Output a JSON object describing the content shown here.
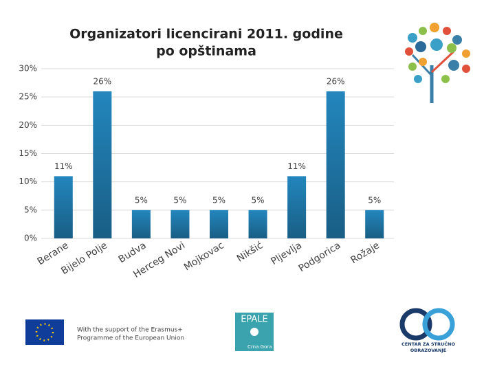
{
  "chart_data": {
    "type": "bar",
    "title": [
      "Organizatori licencirani 2011. godine",
      "po opštinama"
    ],
    "categories": [
      "Berane",
      "Bijelo Polje",
      "Budva",
      "Herceg Novi",
      "Mojkovac",
      "Nikšić",
      "Pljevlja",
      "Podgorica",
      "Rožaje"
    ],
    "values": [
      11,
      26,
      5,
      5,
      5,
      5,
      11,
      26,
      5
    ],
    "value_labels": [
      "11%",
      "26%",
      "5%",
      "5%",
      "5%",
      "5%",
      "11%",
      "26%",
      "5%"
    ],
    "color": "#2386bd",
    "ylim": [
      0,
      30
    ],
    "yticks": [
      {
        "value": 0,
        "label": "0%"
      },
      {
        "value": 5,
        "label": "5%"
      },
      {
        "value": 10,
        "label": "10%"
      },
      {
        "value": 15,
        "label": "15%"
      },
      {
        "value": 20,
        "label": "20%"
      },
      {
        "value": 25,
        "label": "25%"
      },
      {
        "value": 30,
        "label": "30%"
      }
    ],
    "grid": true
  },
  "footer": {
    "support": [
      "With the support of the Erasmus+",
      "Programme of the European Union"
    ],
    "epale": "EPALE",
    "epale_country": "Crna Gora",
    "cso": [
      "CENTAR ZA STRUČNO",
      "OBRAZOVANJE"
    ]
  }
}
